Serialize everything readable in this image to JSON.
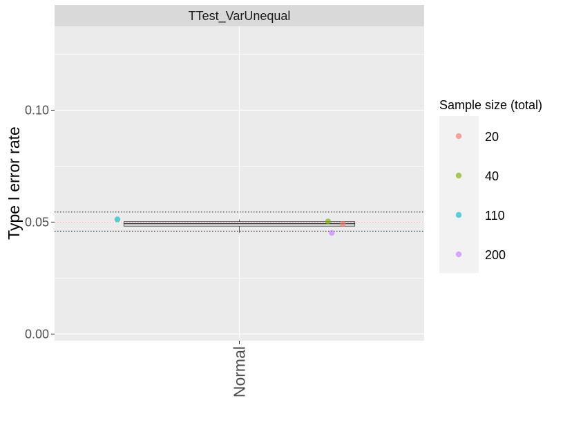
{
  "chart_data": {
    "type": "boxplot-with-points",
    "facet_label": "TTest_VarUnequal",
    "xlabel": "",
    "ylabel": "Type I error rate",
    "categories": [
      "Normal"
    ],
    "ylim": [
      -0.003,
      0.1375
    ],
    "y_ticks": [
      0.0,
      0.05,
      0.1
    ],
    "y_tick_labels": [
      "0.00",
      "0.05",
      "0.10"
    ],
    "reference_lines": [
      {
        "y": 0.05,
        "style": "dotted",
        "color": "#ff9999"
      },
      {
        "y": 0.0545,
        "style": "dotted",
        "color": "#000000"
      },
      {
        "y": 0.046,
        "style": "dotted",
        "color": "#000000"
      }
    ],
    "box": {
      "category": "Normal",
      "min": 0.0452,
      "q1": 0.0482,
      "median": 0.0493,
      "q3": 0.0502,
      "max": 0.0512
    },
    "legend_title": "Sample size (total)",
    "legend_position": "right",
    "series": [
      {
        "name": "20",
        "color": "#F8766D",
        "points": [
          {
            "x": "Normal",
            "y": 0.0492
          }
        ]
      },
      {
        "name": "40",
        "color": "#7CAE00",
        "points": [
          {
            "x": "Normal",
            "y": 0.0503
          }
        ]
      },
      {
        "name": "110",
        "color": "#00BFC4",
        "points": [
          {
            "x": "Normal",
            "y": 0.0512
          }
        ]
      },
      {
        "name": "200",
        "color": "#C77CFF",
        "points": [
          {
            "x": "Normal",
            "y": 0.0452
          }
        ]
      }
    ],
    "point_jitter": {
      "20": 0.28,
      "40": 0.24,
      "110": -0.33,
      "200": 0.25
    },
    "grid": true,
    "panel_background": "#EBEBEB",
    "strip_background": "#D9D9D9"
  }
}
